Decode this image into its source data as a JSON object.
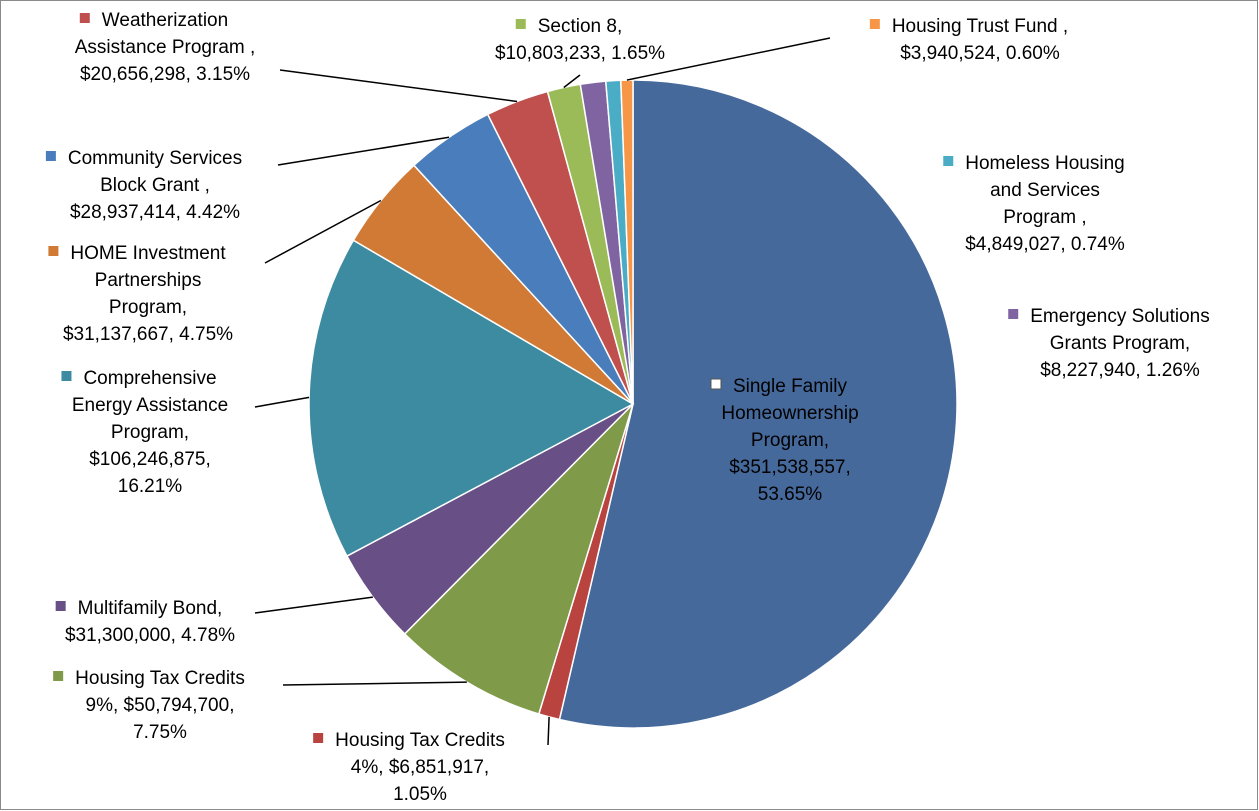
{
  "chart_data": {
    "type": "pie",
    "values": [
      53.65,
      1.05,
      7.75,
      4.78,
      16.21,
      4.75,
      4.42,
      3.15,
      1.65,
      1.26,
      0.74,
      0.6
    ],
    "value_labels": [
      "Single Family\nHomeownership\nProgram,\n$351,538,557,\n53.65%",
      "Housing Tax Credits\n4%, $6,851,917,\n1.05%",
      "Housing Tax Credits\n9%, $50,794,700,\n7.75%",
      "Multifamily Bond,\n$31,300,000, 4.78%",
      "Comprehensive\nEnergy Assistance\nProgram,\n$106,246,875,\n16.21%",
      "HOME Investment\nPartnerships\nProgram,\n$31,137,667, 4.75%",
      "Community Services\nBlock Grant ,\n$28,937,414, 4.42%",
      "Weatherization\nAssistance Program ,\n$20,656,298, 3.15%",
      "Section 8,\n$10,803,233, 1.65%",
      "Emergency Solutions\nGrants Program,\n$8,227,940, 1.26%",
      "Homeless Housing\nand Services\nProgram ,\n$4,849,027, 0.74%",
      "Housing Trust Fund ,\n$3,940,524, 0.60%"
    ],
    "colors": [
      "#46699b",
      "#b9433f",
      "#7f9a48",
      "#684f86",
      "#3d8ba1",
      "#d07a35",
      "#4a7dbb",
      "#c0504d",
      "#9bbb59",
      "#8064a2",
      "#4bacc6",
      "#f79646"
    ]
  }
}
